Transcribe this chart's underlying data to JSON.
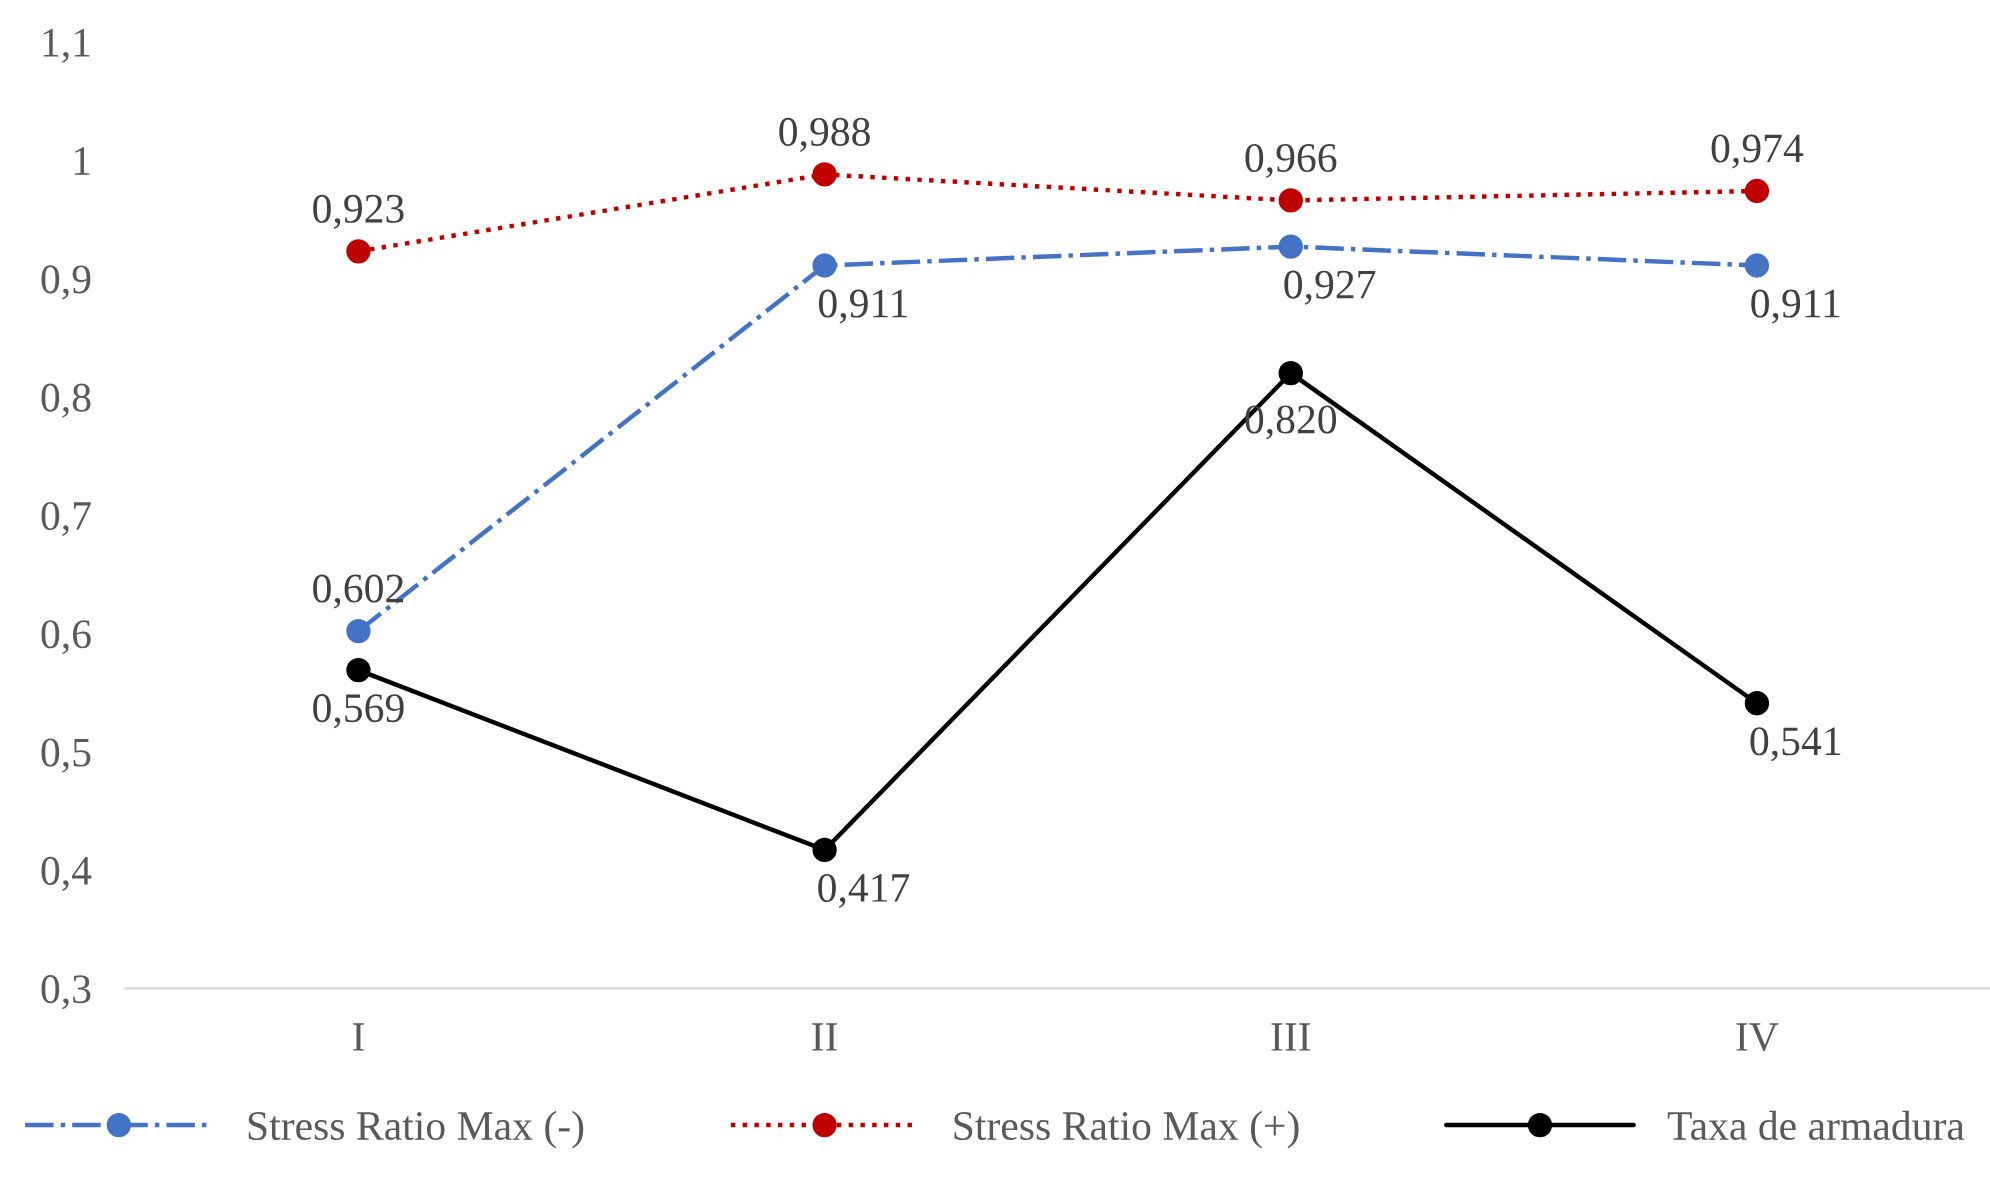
{
  "chart_data": {
    "type": "line",
    "categories": [
      "I",
      "II",
      "III",
      "IV"
    ],
    "series": [
      {
        "name": "Stress Ratio Max (-)",
        "color": "#4472c4",
        "values": [
          0.602,
          0.911,
          0.927,
          0.911
        ],
        "value_labels": [
          "0,602",
          "0,911",
          "0,927",
          "0,911"
        ],
        "line_style": "dashdot"
      },
      {
        "name": "Stress Ratio Max (+)",
        "color": "#c00000",
        "values": [
          0.923,
          0.988,
          0.966,
          0.974
        ],
        "value_labels": [
          "0,923",
          "0,988",
          "0,966",
          "0,974"
        ],
        "line_style": "dotted"
      },
      {
        "name": "Taxa de armadura",
        "color": "#000000",
        "values": [
          0.569,
          0.417,
          0.82,
          0.541
        ],
        "value_labels": [
          "0,569",
          "0,417",
          "0,820",
          "0,541"
        ],
        "line_style": "solid"
      }
    ],
    "ylim": [
      0.3,
      1.1
    ],
    "yticks": [
      {
        "value": 0.3,
        "label": "0,3"
      },
      {
        "value": 0.4,
        "label": "0,4"
      },
      {
        "value": 0.5,
        "label": "0,5"
      },
      {
        "value": 0.6,
        "label": "0,6"
      },
      {
        "value": 0.7,
        "label": "0,7"
      },
      {
        "value": 0.8,
        "label": "0,8"
      },
      {
        "value": 0.9,
        "label": "0,9"
      },
      {
        "value": 1,
        "label": "1"
      },
      {
        "value": 1.1,
        "label": "1,1"
      }
    ],
    "marker": "circle",
    "grid": false,
    "legend": "bottom"
  }
}
